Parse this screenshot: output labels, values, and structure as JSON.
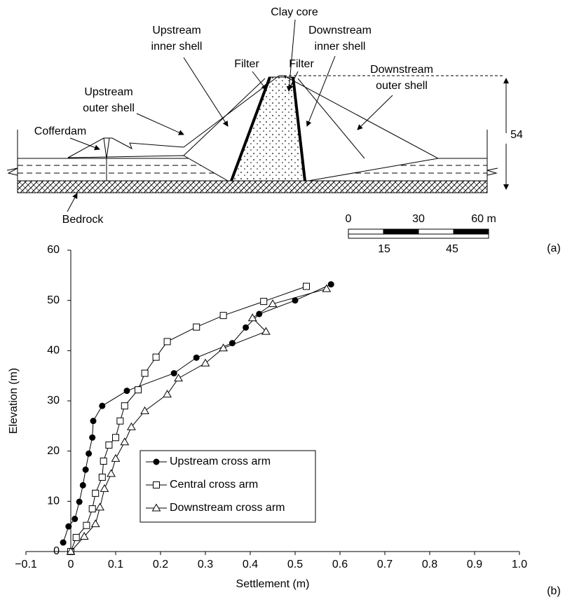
{
  "diagram": {
    "labels": {
      "clay_core": [
        "Clay core"
      ],
      "upstream_inner_shell": [
        "Upstream",
        "inner shell"
      ],
      "downstream_inner_shell": [
        "Downstream",
        "inner shell"
      ],
      "filter_left": [
        "Filter"
      ],
      "filter_right": [
        "Filter"
      ],
      "upstream_outer_shell": [
        "Upstream",
        "outer shell"
      ],
      "downstream_outer_shell": [
        "Downstream",
        "outer shell"
      ],
      "cofferdam": [
        "Cofferdam"
      ],
      "bedrock": [
        "Bedrock"
      ]
    },
    "height_label": "54",
    "scale_top": [
      "0",
      "30",
      "60 m"
    ],
    "scale_bottom": [
      "15",
      "45"
    ],
    "panel_label": "(a)"
  },
  "chart_data": {
    "type": "line",
    "panel_label": "(b)",
    "x_label": "Settlement (m)",
    "y_label": "Elevation (m)",
    "xlim": [
      -0.1,
      1.0
    ],
    "ylim": [
      0,
      60
    ],
    "xticks": [
      {
        "value": -0.1,
        "label": "−0.1"
      },
      0,
      0.1,
      0.2,
      0.3,
      0.4,
      0.5,
      0.6,
      0.7,
      0.8,
      0.9,
      {
        "value": 1.0,
        "label": "1.0"
      }
    ],
    "yticks": [
      0,
      10,
      20,
      30,
      40,
      50,
      60
    ],
    "legend": "lower left",
    "series": [
      {
        "name": "Upstream cross arm",
        "color": "#000000",
        "marker": "circle-filled",
        "x": [
          -0.017,
          -0.005,
          0.009,
          0.019,
          0.027,
          0.033,
          0.04,
          0.048,
          0.05,
          0.07,
          0.125,
          0.23,
          0.28,
          0.36,
          0.39,
          0.42,
          0.5,
          0.58
        ],
        "values": [
          1.8,
          5,
          6.5,
          9.9,
          13.2,
          16.3,
          19.5,
          22.7,
          26,
          29,
          32,
          35.5,
          38.6,
          41.5,
          44.6,
          47.3,
          50,
          53.2
        ]
      },
      {
        "name": "Central cross arm",
        "color": "#000000",
        "marker": "square-open",
        "x": [
          0,
          0.012,
          0.035,
          0.048,
          0.055,
          0.07,
          0.073,
          0.085,
          0.1,
          0.11,
          0.12,
          0.15,
          0.165,
          0.19,
          0.215,
          0.28,
          0.34,
          0.43,
          0.525
        ],
        "values": [
          0,
          2.8,
          5.2,
          8.5,
          11.6,
          14.8,
          18,
          21.2,
          22.7,
          26,
          29,
          32.2,
          35.5,
          38.7,
          41.8,
          44.7,
          47,
          49.8,
          52.8
        ]
      },
      {
        "name": "Downstream cross arm",
        "color": "#000000",
        "marker": "triangle-open",
        "x": [
          0,
          0.03,
          0.055,
          0.065,
          0.075,
          0.09,
          0.1,
          0.12,
          0.135,
          0.165,
          0.215,
          0.24,
          0.3,
          0.34,
          0.435,
          0.405,
          0.45,
          0.57
        ],
        "values": [
          0,
          3,
          5.5,
          8.8,
          12.5,
          15.5,
          18.5,
          21.8,
          24.8,
          28,
          31.3,
          34.5,
          37.5,
          40.5,
          43.8,
          46.5,
          49.3,
          52.3
        ]
      }
    ]
  }
}
